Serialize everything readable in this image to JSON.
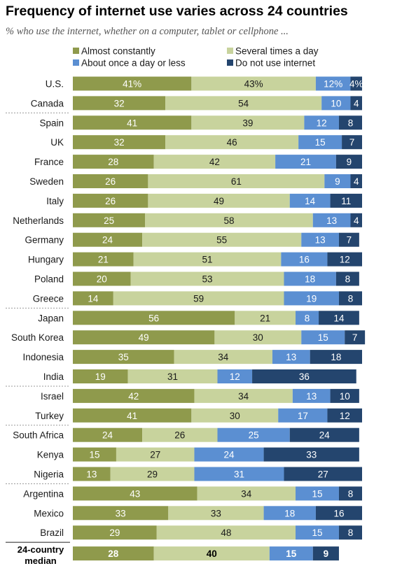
{
  "title": "Frequency of internet use varies across 24 countries",
  "subtitle": "% who use the internet, whether on a computer, tablet or cellphone ...",
  "colors": {
    "almost_constantly": "#8f9a4c",
    "several_times": "#c8d39d",
    "once_a_day": "#5b8fd2",
    "do_not_use": "#24456e",
    "separator": "#9a9a9a"
  },
  "chart_data": {
    "type": "bar",
    "stacked": true,
    "orientation": "horizontal",
    "legend_position": "top",
    "series": [
      {
        "name": "Almost constantly",
        "color_key": "almost_constantly",
        "label_color": "#ffffff"
      },
      {
        "name": "Several times a day",
        "color_key": "several_times",
        "label_color": "#1a1a1a"
      },
      {
        "name": "About once a day or less",
        "color_key": "once_a_day",
        "label_color": "#ffffff"
      },
      {
        "name": "Do not use internet",
        "color_key": "do_not_use",
        "label_color": "#ffffff"
      }
    ],
    "rows": [
      {
        "country": "U.S.",
        "values": [
          41,
          43,
          12,
          4
        ],
        "labels": [
          "41%",
          "43%",
          "12%",
          "4%"
        ],
        "group": 1
      },
      {
        "country": "Canada",
        "values": [
          32,
          54,
          10,
          4
        ],
        "labels": [
          "32",
          "54",
          "10",
          "4"
        ],
        "group": 1
      },
      {
        "country": "Spain",
        "values": [
          41,
          39,
          12,
          8
        ],
        "labels": [
          "41",
          "39",
          "12",
          "8"
        ],
        "group": 2
      },
      {
        "country": "UK",
        "values": [
          32,
          46,
          15,
          7
        ],
        "labels": [
          "32",
          "46",
          "15",
          "7"
        ],
        "group": 2
      },
      {
        "country": "France",
        "values": [
          28,
          42,
          21,
          9
        ],
        "labels": [
          "28",
          "42",
          "21",
          "9"
        ],
        "group": 2
      },
      {
        "country": "Sweden",
        "values": [
          26,
          61,
          9,
          4
        ],
        "labels": [
          "26",
          "61",
          "9",
          "4"
        ],
        "group": 2
      },
      {
        "country": "Italy",
        "values": [
          26,
          49,
          14,
          11
        ],
        "labels": [
          "26",
          "49",
          "14",
          "11"
        ],
        "group": 2
      },
      {
        "country": "Netherlands",
        "values": [
          25,
          58,
          13,
          4
        ],
        "labels": [
          "25",
          "58",
          "13",
          "4"
        ],
        "group": 2
      },
      {
        "country": "Germany",
        "values": [
          24,
          55,
          13,
          7
        ],
        "labels": [
          "24",
          "55",
          "13",
          "7"
        ],
        "group": 2
      },
      {
        "country": "Hungary",
        "values": [
          21,
          51,
          16,
          12
        ],
        "labels": [
          "21",
          "51",
          "16",
          "12"
        ],
        "group": 2
      },
      {
        "country": "Poland",
        "values": [
          20,
          53,
          18,
          8
        ],
        "labels": [
          "20",
          "53",
          "18",
          "8"
        ],
        "group": 2
      },
      {
        "country": "Greece",
        "values": [
          14,
          59,
          19,
          8
        ],
        "labels": [
          "14",
          "59",
          "19",
          "8"
        ],
        "group": 2
      },
      {
        "country": "Japan",
        "values": [
          56,
          21,
          8,
          14
        ],
        "labels": [
          "56",
          "21",
          "8",
          "14"
        ],
        "group": 3
      },
      {
        "country": "South Korea",
        "values": [
          49,
          30,
          15,
          7
        ],
        "labels": [
          "49",
          "30",
          "15",
          "7"
        ],
        "group": 3
      },
      {
        "country": "Indonesia",
        "values": [
          35,
          34,
          13,
          18
        ],
        "labels": [
          "35",
          "34",
          "13",
          "18"
        ],
        "group": 3
      },
      {
        "country": "India",
        "values": [
          19,
          31,
          12,
          36
        ],
        "labels": [
          "19",
          "31",
          "12",
          "36"
        ],
        "group": 3
      },
      {
        "country": "Israel",
        "values": [
          42,
          34,
          13,
          10
        ],
        "labels": [
          "42",
          "34",
          "13",
          "10"
        ],
        "group": 4
      },
      {
        "country": "Turkey",
        "values": [
          41,
          30,
          17,
          12
        ],
        "labels": [
          "41",
          "30",
          "17",
          "12"
        ],
        "group": 4
      },
      {
        "country": "South Africa",
        "values": [
          24,
          26,
          25,
          24
        ],
        "labels": [
          "24",
          "26",
          "25",
          "24"
        ],
        "group": 5
      },
      {
        "country": "Kenya",
        "values": [
          15,
          27,
          24,
          33
        ],
        "labels": [
          "15",
          "27",
          "24",
          "33"
        ],
        "group": 5
      },
      {
        "country": "Nigeria",
        "values": [
          13,
          29,
          31,
          27
        ],
        "labels": [
          "13",
          "29",
          "31",
          "27"
        ],
        "group": 5
      },
      {
        "country": "Argentina",
        "values": [
          43,
          34,
          15,
          8
        ],
        "labels": [
          "43",
          "34",
          "15",
          "8"
        ],
        "group": 6
      },
      {
        "country": "Mexico",
        "values": [
          33,
          33,
          18,
          16
        ],
        "labels": [
          "33",
          "33",
          "18",
          "16"
        ],
        "group": 6
      },
      {
        "country": "Brazil",
        "values": [
          29,
          48,
          15,
          8
        ],
        "labels": [
          "29",
          "48",
          "15",
          "8"
        ],
        "group": 6
      }
    ],
    "median": {
      "country": "24-country median",
      "values": [
        28,
        40,
        15,
        9
      ],
      "labels": [
        "28",
        "40",
        "15",
        "9"
      ]
    }
  }
}
